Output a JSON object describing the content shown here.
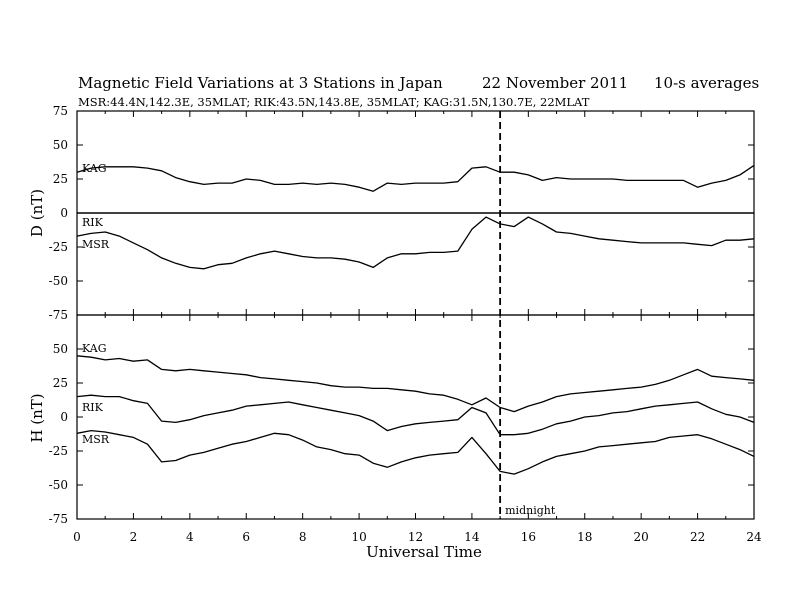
{
  "header": {
    "title": "Magnetic Field Variations at 3 Stations in Japan",
    "date": "22 November 2011",
    "averaging": "10-s averages",
    "stations_line": "MSR:44.4N,142.3E, 35MLAT;  RIK:43.5N,143.8E, 35MLAT;  KAG:31.5N,130.7E, 22MLAT"
  },
  "chart_data": {
    "type": "line",
    "xlabel": "Universal Time",
    "xlim": [
      0,
      24
    ],
    "xticks": [
      0,
      2,
      4,
      6,
      8,
      10,
      12,
      14,
      16,
      18,
      20,
      22,
      24
    ],
    "annotation": {
      "x": 15,
      "text": "midnight",
      "style": "dashed vertical line"
    },
    "panels": [
      {
        "id": "D",
        "ylabel": "D (nT)",
        "ylim": [
          -75,
          75
        ],
        "yticks": [
          -75,
          -50,
          -25,
          0,
          25,
          50,
          75
        ],
        "zero_line": true,
        "series": [
          {
            "name": "KAG",
            "x": [
              0,
              0.5,
              1,
              1.5,
              2,
              2.5,
              3,
              3.5,
              4,
              4.5,
              5,
              5.5,
              6,
              6.5,
              7,
              7.5,
              8,
              8.5,
              9,
              9.5,
              10,
              10.5,
              11,
              11.5,
              12,
              12.5,
              13,
              13.5,
              14,
              14.5,
              15,
              15.5,
              16,
              16.5,
              17,
              17.5,
              18,
              18.5,
              19,
              19.5,
              20,
              20.5,
              21,
              21.5,
              22,
              22.5,
              23,
              23.5,
              24
            ],
            "y": [
              30,
              33,
              34,
              34,
              34,
              33,
              31,
              26,
              23,
              21,
              22,
              22,
              25,
              24,
              21,
              21,
              22,
              21,
              22,
              21,
              19,
              16,
              22,
              21,
              22,
              22,
              22,
              23,
              33,
              34,
              30,
              30,
              28,
              24,
              26,
              25,
              25,
              25,
              25,
              24,
              24,
              24,
              24,
              24,
              19,
              22,
              24,
              28,
              35
            ]
          },
          {
            "name": "RIK",
            "x": [
              0,
              0.5,
              1,
              1.5,
              2,
              2.5,
              3,
              3.5,
              4,
              4.5,
              5,
              5.5,
              6,
              6.5,
              7,
              7.5,
              8,
              8.5,
              9,
              9.5,
              10,
              10.5,
              11,
              11.5,
              12,
              12.5,
              13,
              13.5,
              14,
              14.5,
              15,
              15.5,
              16,
              16.5,
              17,
              17.5,
              18,
              18.5,
              19,
              19.5,
              20,
              20.5,
              21,
              21.5,
              22,
              22.5,
              23,
              23.5,
              24
            ],
            "y": [
              -17,
              -15,
              -14,
              -17,
              -22,
              -27,
              -33,
              -37,
              -40,
              -41,
              -38,
              -37,
              -33,
              -30,
              -28,
              -30,
              -32,
              -33,
              -33,
              -34,
              -36,
              -40,
              -33,
              -30,
              -30,
              -29,
              -29,
              -28,
              -12,
              -3,
              -8,
              -10,
              -3,
              -8,
              -14,
              -15,
              -17,
              -19,
              -20,
              -21,
              -22,
              -22,
              -22,
              -22,
              -23,
              -24,
              -20,
              -20,
              -19
            ]
          },
          {
            "name": "MSR",
            "x": [],
            "y": []
          }
        ]
      },
      {
        "id": "H",
        "ylabel": "H (nT)",
        "ylim": [
          -75,
          75
        ],
        "yticks": [
          -75,
          -50,
          -25,
          0,
          25,
          50
        ],
        "series": [
          {
            "name": "KAG",
            "x": [
              0,
              0.5,
              1,
              1.5,
              2,
              2.5,
              3,
              3.5,
              4,
              4.5,
              5,
              5.5,
              6,
              6.5,
              7,
              7.5,
              8,
              8.5,
              9,
              9.5,
              10,
              10.5,
              11,
              11.5,
              12,
              12.5,
              13,
              13.5,
              14,
              14.5,
              15,
              15.5,
              16,
              16.5,
              17,
              17.5,
              18,
              18.5,
              19,
              19.5,
              20,
              20.5,
              21,
              21.5,
              22,
              22.5,
              23,
              23.5,
              24
            ],
            "y": [
              45,
              44,
              42,
              43,
              41,
              42,
              35,
              34,
              35,
              34,
              33,
              32,
              31,
              29,
              28,
              27,
              26,
              25,
              23,
              22,
              22,
              21,
              21,
              20,
              19,
              17,
              16,
              13,
              9,
              14,
              7,
              4,
              8,
              11,
              15,
              17,
              18,
              19,
              20,
              21,
              22,
              24,
              27,
              31,
              35,
              30,
              29,
              28,
              27
            ]
          },
          {
            "name": "RIK",
            "x": [
              0,
              0.5,
              1,
              1.5,
              2,
              2.5,
              3,
              3.5,
              4,
              4.5,
              5,
              5.5,
              6,
              6.5,
              7,
              7.5,
              8,
              8.5,
              9,
              9.5,
              10,
              10.5,
              11,
              11.5,
              12,
              12.5,
              13,
              13.5,
              14,
              14.5,
              15,
              15.5,
              16,
              16.5,
              17,
              17.5,
              18,
              18.5,
              19,
              19.5,
              20,
              20.5,
              21,
              21.5,
              22,
              22.5,
              23,
              23.5,
              24
            ],
            "y": [
              15,
              16,
              15,
              15,
              12,
              10,
              -3,
              -4,
              -2,
              1,
              3,
              5,
              8,
              9,
              10,
              11,
              9,
              7,
              5,
              3,
              1,
              -3,
              -10,
              -7,
              -5,
              -4,
              -3,
              -2,
              7,
              3,
              -13,
              -13,
              -12,
              -9,
              -5,
              -3,
              0,
              1,
              3,
              4,
              6,
              8,
              9,
              10,
              11,
              6,
              2,
              0,
              -4
            ]
          },
          {
            "name": "MSR",
            "x": [
              0,
              0.5,
              1,
              1.5,
              2,
              2.5,
              3,
              3.5,
              4,
              4.5,
              5,
              5.5,
              6,
              6.5,
              7,
              7.5,
              8,
              8.5,
              9,
              9.5,
              10,
              10.5,
              11,
              11.5,
              12,
              12.5,
              13,
              13.5,
              14,
              14.5,
              15,
              15.5,
              16,
              16.5,
              17,
              17.5,
              18,
              18.5,
              19,
              19.5,
              20,
              20.5,
              21,
              21.5,
              22,
              22.5,
              23,
              23.5,
              24
            ],
            "y": [
              -12,
              -10,
              -11,
              -13,
              -15,
              -20,
              -33,
              -32,
              -28,
              -26,
              -23,
              -20,
              -18,
              -15,
              -12,
              -13,
              -17,
              -22,
              -24,
              -27,
              -28,
              -34,
              -37,
              -33,
              -30,
              -28,
              -27,
              -26,
              -15,
              -27,
              -40,
              -42,
              -38,
              -33,
              -29,
              -27,
              -25,
              -22,
              -21,
              -20,
              -19,
              -18,
              -15,
              -14,
              -13,
              -16,
              -20,
              -24,
              -29
            ]
          }
        ]
      }
    ]
  }
}
